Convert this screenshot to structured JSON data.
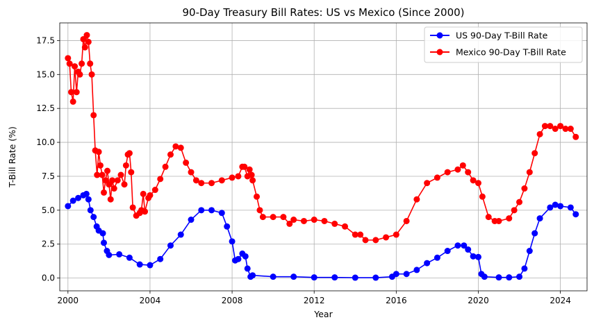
{
  "chart_data": {
    "type": "line",
    "title": "90-Day Treasury Bill Rates: US vs Mexico (Since 2000)",
    "xlabel": "Year",
    "ylabel": "T-Bill Rate (%)",
    "xlim": [
      1999.6,
      2025.3
    ],
    "ylim": [
      -0.94,
      18.8
    ],
    "x_ticks": [
      2000,
      2004,
      2008,
      2012,
      2016,
      2020,
      2024
    ],
    "y_ticks": [
      0.0,
      2.5,
      5.0,
      7.5,
      10.0,
      12.5,
      15.0,
      17.5
    ],
    "y_tick_labels": [
      "0.0",
      "2.5",
      "5.0",
      "7.5",
      "10.0",
      "12.5",
      "15.0",
      "17.5"
    ],
    "grid": true,
    "legend_position": "top-right",
    "series": [
      {
        "name": "US 90-Day T-Bill Rate",
        "color": "#0000ff",
        "points": [
          [
            2000.0,
            5.3
          ],
          [
            2000.25,
            5.7
          ],
          [
            2000.5,
            5.9
          ],
          [
            2000.75,
            6.1
          ],
          [
            2000.9,
            6.2
          ],
          [
            2001.0,
            5.8
          ],
          [
            2001.1,
            5.0
          ],
          [
            2001.25,
            4.5
          ],
          [
            2001.4,
            3.8
          ],
          [
            2001.5,
            3.5
          ],
          [
            2001.7,
            3.3
          ],
          [
            2001.75,
            2.6
          ],
          [
            2001.9,
            2.0
          ],
          [
            2002.0,
            1.7
          ],
          [
            2002.5,
            1.75
          ],
          [
            2003.0,
            1.5
          ],
          [
            2003.5,
            1.0
          ],
          [
            2004.0,
            0.95
          ],
          [
            2004.5,
            1.4
          ],
          [
            2005.0,
            2.4
          ],
          [
            2005.5,
            3.2
          ],
          [
            2006.0,
            4.3
          ],
          [
            2006.5,
            5.0
          ],
          [
            2007.0,
            5.0
          ],
          [
            2007.5,
            4.8
          ],
          [
            2007.75,
            3.8
          ],
          [
            2008.0,
            2.7
          ],
          [
            2008.15,
            1.3
          ],
          [
            2008.3,
            1.4
          ],
          [
            2008.5,
            1.8
          ],
          [
            2008.65,
            1.6
          ],
          [
            2008.75,
            0.7
          ],
          [
            2008.9,
            0.1
          ],
          [
            2009.0,
            0.2
          ],
          [
            2010.0,
            0.1
          ],
          [
            2011.0,
            0.1
          ],
          [
            2012.0,
            0.05
          ],
          [
            2013.0,
            0.05
          ],
          [
            2014.0,
            0.03
          ],
          [
            2015.0,
            0.03
          ],
          [
            2015.8,
            0.1
          ],
          [
            2016.0,
            0.3
          ],
          [
            2016.5,
            0.3
          ],
          [
            2017.0,
            0.6
          ],
          [
            2017.5,
            1.1
          ],
          [
            2018.0,
            1.5
          ],
          [
            2018.5,
            2.0
          ],
          [
            2019.0,
            2.4
          ],
          [
            2019.3,
            2.4
          ],
          [
            2019.5,
            2.1
          ],
          [
            2019.75,
            1.6
          ],
          [
            2020.0,
            1.55
          ],
          [
            2020.15,
            0.3
          ],
          [
            2020.3,
            0.1
          ],
          [
            2021.0,
            0.05
          ],
          [
            2021.5,
            0.05
          ],
          [
            2022.0,
            0.1
          ],
          [
            2022.25,
            0.7
          ],
          [
            2022.5,
            2.0
          ],
          [
            2022.75,
            3.3
          ],
          [
            2023.0,
            4.4
          ],
          [
            2023.5,
            5.2
          ],
          [
            2023.75,
            5.4
          ],
          [
            2024.0,
            5.3
          ],
          [
            2024.5,
            5.2
          ],
          [
            2024.75,
            4.7
          ]
        ]
      },
      {
        "name": "Mexico 90-Day T-Bill Rate",
        "color": "#ff0000",
        "points": [
          [
            2000.0,
            16.2
          ],
          [
            2000.08,
            15.8
          ],
          [
            2000.16,
            13.7
          ],
          [
            2000.25,
            13.0
          ],
          [
            2000.33,
            15.6
          ],
          [
            2000.42,
            13.7
          ],
          [
            2000.5,
            15.2
          ],
          [
            2000.58,
            15.0
          ],
          [
            2000.67,
            15.8
          ],
          [
            2000.75,
            17.6
          ],
          [
            2000.83,
            17.0
          ],
          [
            2000.92,
            17.9
          ],
          [
            2001.0,
            17.4
          ],
          [
            2001.08,
            15.8
          ],
          [
            2001.16,
            15.0
          ],
          [
            2001.25,
            12.0
          ],
          [
            2001.33,
            9.4
          ],
          [
            2001.42,
            7.6
          ],
          [
            2001.5,
            9.3
          ],
          [
            2001.58,
            8.3
          ],
          [
            2001.67,
            7.6
          ],
          [
            2001.75,
            6.3
          ],
          [
            2001.83,
            7.2
          ],
          [
            2001.92,
            7.9
          ],
          [
            2002.0,
            6.9
          ],
          [
            2002.08,
            5.8
          ],
          [
            2002.16,
            7.2
          ],
          [
            2002.25,
            6.6
          ],
          [
            2002.42,
            7.2
          ],
          [
            2002.58,
            7.6
          ],
          [
            2002.75,
            6.9
          ],
          [
            2002.83,
            8.3
          ],
          [
            2002.92,
            9.1
          ],
          [
            2003.0,
            9.2
          ],
          [
            2003.08,
            7.8
          ],
          [
            2003.16,
            5.2
          ],
          [
            2003.33,
            4.6
          ],
          [
            2003.5,
            4.8
          ],
          [
            2003.58,
            5.0
          ],
          [
            2003.67,
            6.2
          ],
          [
            2003.75,
            4.9
          ],
          [
            2003.92,
            5.9
          ],
          [
            2004.0,
            6.1
          ],
          [
            2004.25,
            6.5
          ],
          [
            2004.5,
            7.3
          ],
          [
            2004.75,
            8.2
          ],
          [
            2005.0,
            9.1
          ],
          [
            2005.25,
            9.7
          ],
          [
            2005.5,
            9.6
          ],
          [
            2005.75,
            8.5
          ],
          [
            2006.0,
            7.8
          ],
          [
            2006.25,
            7.2
          ],
          [
            2006.5,
            7.0
          ],
          [
            2007.0,
            7.0
          ],
          [
            2007.5,
            7.2
          ],
          [
            2008.0,
            7.4
          ],
          [
            2008.3,
            7.5
          ],
          [
            2008.5,
            8.2
          ],
          [
            2008.6,
            8.2
          ],
          [
            2008.75,
            7.5
          ],
          [
            2008.85,
            8.0
          ],
          [
            2008.95,
            7.6
          ],
          [
            2009.0,
            7.2
          ],
          [
            2009.2,
            6.0
          ],
          [
            2009.35,
            5.0
          ],
          [
            2009.5,
            4.5
          ],
          [
            2010.0,
            4.5
          ],
          [
            2010.5,
            4.5
          ],
          [
            2010.8,
            4.0
          ],
          [
            2011.0,
            4.3
          ],
          [
            2011.5,
            4.2
          ],
          [
            2012.0,
            4.3
          ],
          [
            2012.5,
            4.2
          ],
          [
            2013.0,
            4.0
          ],
          [
            2013.5,
            3.8
          ],
          [
            2014.0,
            3.2
          ],
          [
            2014.25,
            3.2
          ],
          [
            2014.5,
            2.8
          ],
          [
            2015.0,
            2.8
          ],
          [
            2015.5,
            3.0
          ],
          [
            2016.0,
            3.2
          ],
          [
            2016.5,
            4.2
          ],
          [
            2017.0,
            5.8
          ],
          [
            2017.5,
            7.0
          ],
          [
            2018.0,
            7.4
          ],
          [
            2018.5,
            7.8
          ],
          [
            2019.0,
            8.0
          ],
          [
            2019.25,
            8.3
          ],
          [
            2019.5,
            7.8
          ],
          [
            2019.75,
            7.2
          ],
          [
            2020.0,
            7.0
          ],
          [
            2020.2,
            6.0
          ],
          [
            2020.5,
            4.5
          ],
          [
            2020.8,
            4.2
          ],
          [
            2021.0,
            4.2
          ],
          [
            2021.5,
            4.4
          ],
          [
            2021.75,
            5.0
          ],
          [
            2022.0,
            5.6
          ],
          [
            2022.25,
            6.6
          ],
          [
            2022.5,
            7.8
          ],
          [
            2022.75,
            9.2
          ],
          [
            2023.0,
            10.6
          ],
          [
            2023.25,
            11.2
          ],
          [
            2023.5,
            11.2
          ],
          [
            2023.75,
            11.0
          ],
          [
            2024.0,
            11.2
          ],
          [
            2024.25,
            11.0
          ],
          [
            2024.5,
            11.0
          ],
          [
            2024.75,
            10.4
          ]
        ]
      }
    ]
  }
}
